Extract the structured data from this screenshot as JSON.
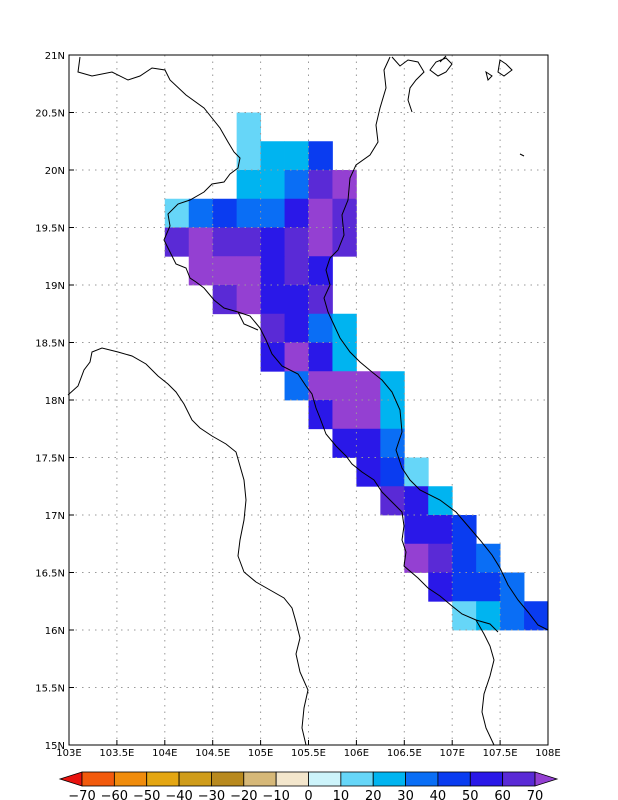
{
  "map": {
    "lon_range": [
      103,
      108
    ],
    "lat_range": [
      15,
      21
    ],
    "lon_ticks": [
      {
        "value": 103,
        "label": "103E"
      },
      {
        "value": 103.5,
        "label": "103.5E"
      },
      {
        "value": 104,
        "label": "104E"
      },
      {
        "value": 104.5,
        "label": "104.5E"
      },
      {
        "value": 105,
        "label": "105E"
      },
      {
        "value": 105.5,
        "label": "105.5E"
      },
      {
        "value": 106,
        "label": "106E"
      },
      {
        "value": 106.5,
        "label": "106.5E"
      },
      {
        "value": 107,
        "label": "107E"
      },
      {
        "value": 107.5,
        "label": "107.5E"
      },
      {
        "value": 108,
        "label": "108E"
      }
    ],
    "lat_ticks": [
      {
        "value": 15,
        "label": "15N"
      },
      {
        "value": 15.5,
        "label": "15.5N"
      },
      {
        "value": 16,
        "label": "16N"
      },
      {
        "value": 16.5,
        "label": "16.5N"
      },
      {
        "value": 17,
        "label": "17N"
      },
      {
        "value": 17.5,
        "label": "17.5N"
      },
      {
        "value": 18,
        "label": "18N"
      },
      {
        "value": 18.5,
        "label": "18.5N"
      },
      {
        "value": 19,
        "label": "19N"
      },
      {
        "value": 19.5,
        "label": "19.5N"
      },
      {
        "value": 20,
        "label": "20N"
      },
      {
        "value": 20.5,
        "label": "20.5N"
      },
      {
        "value": 21,
        "label": "21N"
      }
    ],
    "grid": "dotted",
    "cell_size_deg": 0.25
  },
  "colorbar": {
    "levels": [
      "-70",
      "-60",
      "-50",
      "-40",
      "-30",
      "-20",
      "-10",
      "0",
      "10",
      "20",
      "30",
      "40",
      "50",
      "60",
      "70"
    ],
    "colors": [
      "#e8130f",
      "#f25a0c",
      "#f08c0c",
      "#e4a612",
      "#cf9c1a",
      "#b8891e",
      "#d6b878",
      "#f3e6cc",
      "#cdf4fb",
      "#66d6f8",
      "#00b4f0",
      "#0a6ef5",
      "#0a3cf0",
      "#2a18e8",
      "#5a2ad6",
      "#9440d2"
    ]
  },
  "chart_data": {
    "type": "heatmap",
    "x_unit": "degrees E",
    "y_unit": "degrees N",
    "value_key": "each cell: [lon_west, lat_north, color_bin_index]",
    "cells": [
      [
        104.75,
        20.5,
        9
      ],
      [
        104.75,
        20.25,
        9
      ],
      [
        105.0,
        20.25,
        10
      ],
      [
        105.25,
        20.25,
        10
      ],
      [
        105.5,
        20.25,
        12
      ],
      [
        104.75,
        20.0,
        10
      ],
      [
        105.0,
        20.0,
        10
      ],
      [
        105.25,
        20.0,
        11
      ],
      [
        105.5,
        20.0,
        14
      ],
      [
        105.75,
        20.0,
        15
      ],
      [
        104.0,
        19.75,
        9
      ],
      [
        104.25,
        19.75,
        11
      ],
      [
        104.5,
        19.75,
        12
      ],
      [
        104.75,
        19.75,
        11
      ],
      [
        105.0,
        19.75,
        11
      ],
      [
        105.25,
        19.75,
        13
      ],
      [
        105.5,
        19.75,
        15
      ],
      [
        105.75,
        19.75,
        14
      ],
      [
        104.0,
        19.5,
        14
      ],
      [
        104.25,
        19.5,
        15
      ],
      [
        104.5,
        19.5,
        14
      ],
      [
        104.75,
        19.5,
        14
      ],
      [
        105.0,
        19.5,
        13
      ],
      [
        105.25,
        19.5,
        14
      ],
      [
        105.5,
        19.5,
        15
      ],
      [
        105.75,
        19.5,
        14
      ],
      [
        104.25,
        19.25,
        15
      ],
      [
        104.5,
        19.25,
        15
      ],
      [
        104.75,
        19.25,
        15
      ],
      [
        105.0,
        19.25,
        13
      ],
      [
        105.25,
        19.25,
        14
      ],
      [
        105.5,
        19.25,
        13
      ],
      [
        104.5,
        19.0,
        14
      ],
      [
        104.75,
        19.0,
        15
      ],
      [
        105.0,
        19.0,
        13
      ],
      [
        105.25,
        19.0,
        13
      ],
      [
        105.5,
        19.0,
        14
      ],
      [
        105.0,
        18.75,
        14
      ],
      [
        105.25,
        18.75,
        13
      ],
      [
        105.5,
        18.75,
        11
      ],
      [
        105.75,
        18.75,
        10
      ],
      [
        105.0,
        18.5,
        13
      ],
      [
        105.25,
        18.5,
        15
      ],
      [
        105.5,
        18.5,
        13
      ],
      [
        105.75,
        18.5,
        10
      ],
      [
        105.25,
        18.25,
        11
      ],
      [
        105.5,
        18.25,
        15
      ],
      [
        105.75,
        18.25,
        15
      ],
      [
        106.0,
        18.25,
        15
      ],
      [
        106.25,
        18.25,
        10
      ],
      [
        105.5,
        18.0,
        13
      ],
      [
        105.75,
        18.0,
        15
      ],
      [
        106.0,
        18.0,
        15
      ],
      [
        106.25,
        18.0,
        10
      ],
      [
        105.75,
        17.75,
        13
      ],
      [
        106.0,
        17.75,
        13
      ],
      [
        106.25,
        17.75,
        11
      ],
      [
        106.0,
        17.5,
        13
      ],
      [
        106.25,
        17.5,
        12
      ],
      [
        106.5,
        17.5,
        9
      ],
      [
        106.25,
        17.25,
        14
      ],
      [
        106.5,
        17.25,
        13
      ],
      [
        106.75,
        17.25,
        10
      ],
      [
        106.5,
        17.0,
        13
      ],
      [
        106.75,
        17.0,
        13
      ],
      [
        107.0,
        17.0,
        12
      ],
      [
        106.5,
        16.75,
        15
      ],
      [
        106.75,
        16.75,
        14
      ],
      [
        107.0,
        16.75,
        12
      ],
      [
        107.25,
        16.75,
        11
      ],
      [
        106.75,
        16.5,
        13
      ],
      [
        107.0,
        16.5,
        12
      ],
      [
        107.25,
        16.5,
        12
      ],
      [
        107.5,
        16.5,
        11
      ],
      [
        107.0,
        16.25,
        9
      ],
      [
        107.25,
        16.25,
        10
      ],
      [
        107.5,
        16.25,
        11
      ],
      [
        107.75,
        16.25,
        12
      ]
    ]
  }
}
